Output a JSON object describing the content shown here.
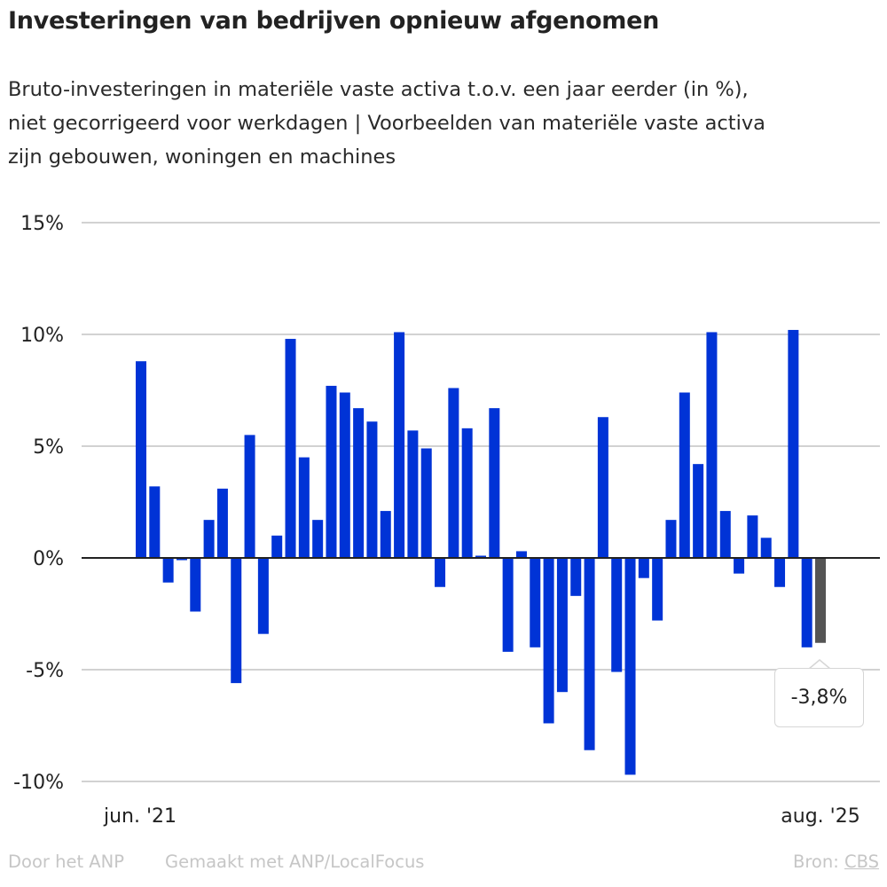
{
  "header": {
    "title": "Investeringen van bedrijven opnieuw afgenomen",
    "subtitle_lines": [
      "Bruto-investeringen in materiële vaste activa t.o.v. een jaar eerder (in %),",
      "niet gecorrigeerd voor werkdagen | Voorbeelden van materiële vaste activa",
      "zijn gebouwen, woningen en machines"
    ]
  },
  "tooltip": {
    "label": "-3,8%"
  },
  "footer": {
    "author": "Door het ANP",
    "made_with": "Gemaakt met ANP/LocalFocus",
    "source_label": "Bron:",
    "source_link": "CBS"
  },
  "colors": {
    "bar": "#0033d6",
    "highlight_bar": "#555555",
    "grid": "#d2d2d2",
    "zero_line": "#222222"
  },
  "chart_data": {
    "type": "bar",
    "title": "Investeringen van bedrijven opnieuw afgenomen",
    "xlabel": "",
    "ylabel": "",
    "ylim": [
      -10,
      15
    ],
    "yticks": [
      15,
      10,
      5,
      0,
      -5,
      -10
    ],
    "ytick_labels": [
      "15%",
      "10%",
      "5%",
      "0%",
      "-5%",
      "-10%"
    ],
    "grid": true,
    "x_range": [
      "jun. '21",
      "aug. '25"
    ],
    "xtick_labels": [
      {
        "index": 0,
        "label": "jun. '21"
      },
      {
        "index": 50,
        "label": "aug. '25"
      }
    ],
    "categories": [
      "2021-06",
      "2021-07",
      "2021-08",
      "2021-09",
      "2021-10",
      "2021-11",
      "2021-12",
      "2022-01",
      "2022-02",
      "2022-03",
      "2022-04",
      "2022-05",
      "2022-06",
      "2022-07",
      "2022-08",
      "2022-09",
      "2022-10",
      "2022-11",
      "2022-12",
      "2023-01",
      "2023-02",
      "2023-03",
      "2023-04",
      "2023-05",
      "2023-06",
      "2023-07",
      "2023-08",
      "2023-09",
      "2023-10",
      "2023-11",
      "2023-12",
      "2024-01",
      "2024-02",
      "2024-03",
      "2024-04",
      "2024-05",
      "2024-06",
      "2024-07",
      "2024-08",
      "2024-09",
      "2024-10",
      "2024-11",
      "2024-12",
      "2025-01",
      "2025-02",
      "2025-03",
      "2025-04",
      "2025-05",
      "2025-06",
      "2025-07",
      "2025-08"
    ],
    "values": [
      8.8,
      3.2,
      -1.1,
      -0.1,
      -2.4,
      1.7,
      3.1,
      -5.6,
      5.5,
      -3.4,
      1.0,
      9.8,
      4.5,
      1.7,
      7.7,
      7.4,
      6.7,
      6.1,
      2.1,
      10.1,
      5.7,
      4.9,
      -1.3,
      7.6,
      5.8,
      0.1,
      6.7,
      -4.2,
      0.3,
      -4.0,
      -7.4,
      -6.0,
      -1.7,
      -8.6,
      6.3,
      -5.1,
      -9.7,
      -0.9,
      -2.8,
      1.7,
      7.4,
      4.2,
      10.1,
      2.1,
      -0.7,
      1.9,
      0.9,
      -1.3,
      10.2,
      -4.0,
      -3.8
    ],
    "highlight_index": 50,
    "annotation": {
      "index": 50,
      "text": "-3,8%"
    }
  }
}
